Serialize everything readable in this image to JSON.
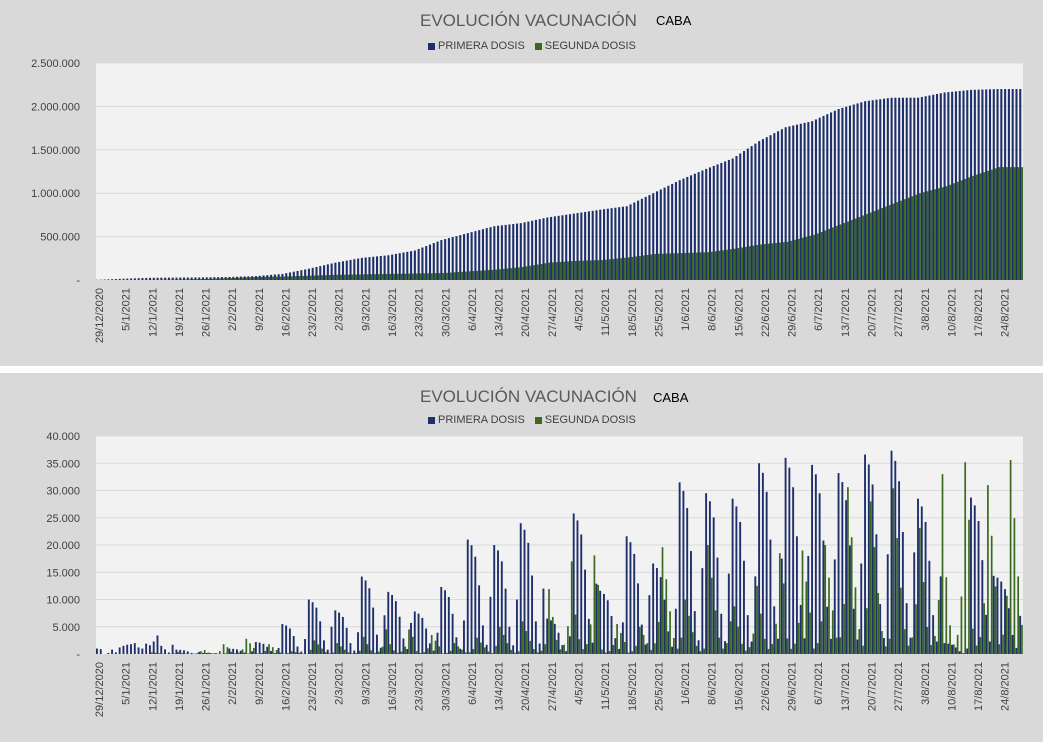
{
  "chart_data": [
    {
      "type": "bar",
      "title": "EVOLUCIÓN VACUNACIÓN",
      "region": "CABA",
      "xlabel": "",
      "ylabel": "",
      "ylim": [
        0,
        2500000
      ],
      "yticks": [
        "-",
        "500.000",
        "1.000.000",
        "1.500.000",
        "2.000.000",
        "2.500.000"
      ],
      "x_ticks": [
        "29/12/2020",
        "5/1/2021",
        "12/1/2021",
        "19/1/2021",
        "26/1/2021",
        "2/2/2021",
        "9/2/2021",
        "16/2/2021",
        "23/2/2021",
        "2/3/2021",
        "9/3/2021",
        "16/3/2021",
        "23/3/2021",
        "30/3/2021",
        "6/4/2021",
        "13/4/2021",
        "20/4/2021",
        "27/4/2021",
        "4/5/2021",
        "11/5/2021",
        "18/5/2021",
        "25/5/2021",
        "1/6/2021",
        "8/6/2021",
        "15/6/2021",
        "22/6/2021",
        "29/6/2021",
        "6/7/2021",
        "13/7/2021",
        "20/7/2021",
        "27/7/2021",
        "3/8/2021",
        "10/8/2021",
        "17/8/2021",
        "24/8/2021"
      ],
      "series": [
        {
          "name": "PRIMERA DOSIS",
          "color": "#1f2f6b",
          "cumulative_weekly": [
            2000,
            15000,
            25000,
            28000,
            30000,
            35000,
            45000,
            70000,
            130000,
            200000,
            255000,
            285000,
            340000,
            460000,
            540000,
            620000,
            655000,
            720000,
            765000,
            810000,
            850000,
            1000000,
            1150000,
            1280000,
            1400000,
            1600000,
            1760000,
            1830000,
            1970000,
            2060000,
            2100000,
            2100000,
            2160000,
            2190000,
            2200000
          ]
        },
        {
          "name": "SEGUNDA DOSIS",
          "color": "#3a6a1f",
          "cumulative_weekly": [
            0,
            0,
            2000,
            5000,
            12000,
            22000,
            35000,
            40000,
            50000,
            60000,
            65000,
            70000,
            75000,
            80000,
            100000,
            120000,
            150000,
            200000,
            220000,
            230000,
            260000,
            300000,
            310000,
            320000,
            360000,
            410000,
            440000,
            520000,
            640000,
            760000,
            880000,
            1000000,
            1080000,
            1200000,
            1300000
          ]
        }
      ]
    },
    {
      "type": "bar",
      "title": "EVOLUCIÓN VACUNACIÓN",
      "region": "CABA",
      "xlabel": "",
      "ylabel": "",
      "ylim": [
        0,
        40000
      ],
      "yticks": [
        "-",
        "5.000",
        "10.000",
        "15.000",
        "20.000",
        "25.000",
        "30.000",
        "35.000",
        "40.000"
      ],
      "x_ticks": [
        "29/12/2020",
        "5/1/2021",
        "12/1/2021",
        "19/1/2021",
        "26/1/2021",
        "2/2/2021",
        "9/2/2021",
        "16/2/2021",
        "23/2/2021",
        "2/3/2021",
        "9/3/2021",
        "16/3/2021",
        "23/3/2021",
        "30/3/2021",
        "6/4/2021",
        "13/4/2021",
        "20/4/2021",
        "27/4/2021",
        "4/5/2021",
        "11/5/2021",
        "18/5/2021",
        "25/5/2021",
        "1/6/2021",
        "8/6/2021",
        "15/6/2021",
        "22/6/2021",
        "29/6/2021",
        "6/7/2021",
        "13/7/2021",
        "20/7/2021",
        "27/7/2021",
        "3/8/2021",
        "10/8/2021",
        "17/8/2021",
        "24/8/2021"
      ],
      "series": [
        {
          "name": "PRIMERA DOSIS",
          "color": "#1f2f6b",
          "weekly_peak": [
            1000,
            1800,
            3400,
            800,
            200,
            1000,
            2200,
            5500,
            10000,
            8000,
            14200,
            11400,
            7800,
            12300,
            21000,
            20000,
            24000,
            6500,
            25800,
            11600,
            21600,
            16600,
            31500,
            29500,
            28500,
            35000,
            36000,
            34700,
            33200,
            36600,
            37300,
            28500,
            2000,
            28700,
            14000
          ],
          "daily_head": [
            1000,
            900,
            0,
            200,
            800,
            300,
            1200,
            1500,
            1700,
            1800,
            2000,
            1200,
            1000,
            1900,
            1600,
            2300,
            3400,
            1500
          ]
        },
        {
          "name": "SEGUNDA DOSIS",
          "color": "#3a6a1f",
          "weekly_peak": [
            0,
            0,
            300,
            500,
            1800,
            2800,
            1800,
            500,
            2500,
            2000,
            4500,
            4500,
            3500,
            2000,
            3000,
            5000,
            6000,
            17000,
            18100,
            5500,
            5000,
            19600,
            10000,
            20000,
            12500,
            18500,
            19000,
            20000,
            30600,
            28000,
            30400,
            33000,
            35200,
            31000,
            35600
          ]
        }
      ]
    }
  ]
}
